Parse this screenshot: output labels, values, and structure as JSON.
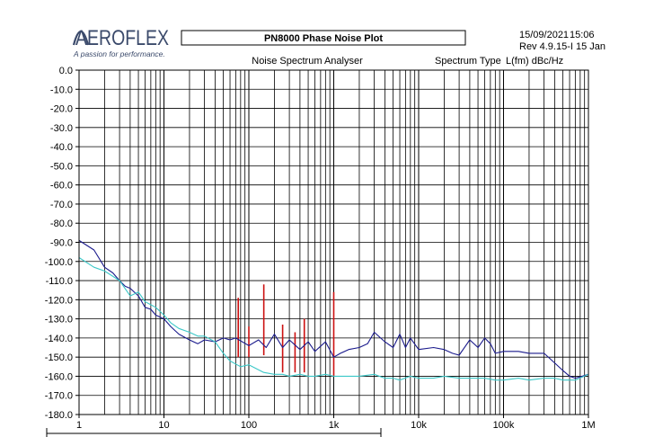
{
  "header": {
    "brand": "AEROFLEX",
    "tagline": "A passion for performance.",
    "title": "PN8000  Phase Noise Plot",
    "date": "15/09/2021",
    "time": "15:06",
    "revision": "Rev  4.9.15-I  15 Jan",
    "analyser_label": "Noise Spectrum Analyser",
    "spectrum_type_label": "Spectrum Type",
    "spectrum_type_value": "L(fm) dBc/Hz"
  },
  "colors": {
    "trace_dark": "#1a1a8c",
    "trace_light": "#3cc8c8",
    "spurs": "#cc1010",
    "grid": "#000000",
    "logo": "#3b4a6b"
  },
  "chart_data": {
    "type": "line",
    "x_scale": "log",
    "xlim": [
      1,
      1000000
    ],
    "ylim": [
      -180,
      0
    ],
    "ylabel": "",
    "xlabel": "",
    "grid": true,
    "yticks": [
      "0.0",
      "-10.0",
      "-20.0",
      "-30.0",
      "-40.0",
      "-50.0",
      "-60.0",
      "-70.0",
      "-80.0",
      "-90.0",
      "-100.0",
      "-110.0",
      "-120.0",
      "-130.0",
      "-140.0",
      "-150.0",
      "-160.0",
      "-170.0",
      "-180.0"
    ],
    "xticks": [
      {
        "value": 1,
        "label": "1"
      },
      {
        "value": 10,
        "label": "10"
      },
      {
        "value": 100,
        "label": "100"
      },
      {
        "value": 1000,
        "label": "1k"
      },
      {
        "value": 10000,
        "label": "10k"
      },
      {
        "value": 100000,
        "label": "100k"
      },
      {
        "value": 1000000,
        "label": "1M"
      }
    ],
    "series": [
      {
        "color": "#1a1a8c",
        "x": [
          1,
          1.5,
          2,
          2.5,
          3,
          3.5,
          4,
          5,
          6,
          7,
          8,
          10,
          12,
          15,
          20,
          25,
          30,
          40,
          50,
          60,
          70,
          100,
          130,
          160,
          200,
          250,
          300,
          400,
          500,
          600,
          800,
          1000,
          1200,
          1500,
          2000,
          2500,
          3000,
          4000,
          5000,
          6000,
          7000,
          8000,
          10000,
          15000,
          20000,
          25000,
          30000,
          40000,
          50000,
          60000,
          70000,
          80000,
          100000,
          150000,
          200000,
          300000,
          400000,
          500000,
          600000,
          700000,
          1000000
        ],
        "y": [
          -89,
          -94,
          -103,
          -106,
          -110,
          -113,
          -114,
          -118,
          -124,
          -125,
          -128,
          -130,
          -134,
          -138,
          -141,
          -143,
          -141,
          -142,
          -140,
          -141,
          -140,
          -144,
          -141,
          -145,
          -138,
          -145,
          -141,
          -146,
          -142,
          -147,
          -142,
          -150,
          -148,
          -146,
          -145,
          -143,
          -137,
          -142,
          -145,
          -138,
          -145,
          -140,
          -146,
          -145,
          -146,
          -148,
          -149,
          -141,
          -145,
          -140,
          -143,
          -148,
          -147,
          -147,
          -148,
          -148,
          -153,
          -157,
          -160,
          -161,
          -159
        ]
      },
      {
        "color": "#3cc8c8",
        "x": [
          1,
          1.5,
          2,
          3,
          4,
          5,
          6,
          8,
          10,
          12,
          15,
          20,
          25,
          30,
          40,
          50,
          60,
          80,
          100,
          150,
          200,
          250,
          300,
          400,
          500,
          600,
          800,
          1000,
          1200,
          1500,
          2000,
          3000,
          4000,
          5000,
          6000,
          8000,
          10000,
          15000,
          20000,
          30000,
          40000,
          50000,
          60000,
          80000,
          100000,
          150000,
          200000,
          300000,
          400000,
          500000,
          700000,
          1000000
        ],
        "y": [
          -98,
          -103,
          -105,
          -110,
          -118,
          -116,
          -121,
          -124,
          -128,
          -132,
          -135,
          -137,
          -139,
          -139,
          -142,
          -148,
          -152,
          -155,
          -154,
          -158,
          -159,
          -159,
          -160,
          -159,
          -160,
          -160,
          -159,
          -160,
          -160,
          -160,
          -160,
          -159,
          -161,
          -161,
          -162,
          -160,
          -161,
          -161,
          -160,
          -161,
          -161,
          -161,
          -161,
          -162,
          -162,
          -161,
          -162,
          -161,
          -161,
          -162,
          -162,
          -159
        ]
      }
    ],
    "spurs": [
      {
        "x": 75,
        "y_top": -119,
        "y_bottom": -150
      },
      {
        "x": 100,
        "y_top": -134,
        "y_bottom": -150
      },
      {
        "x": 150,
        "y_top": -112,
        "y_bottom": -149
      },
      {
        "x": 250,
        "y_top": -133,
        "y_bottom": -158
      },
      {
        "x": 350,
        "y_top": -137,
        "y_bottom": -158
      },
      {
        "x": 450,
        "y_top": -130,
        "y_bottom": -158
      },
      {
        "x": 1000,
        "y_top": -116,
        "y_bottom": -160
      }
    ]
  }
}
